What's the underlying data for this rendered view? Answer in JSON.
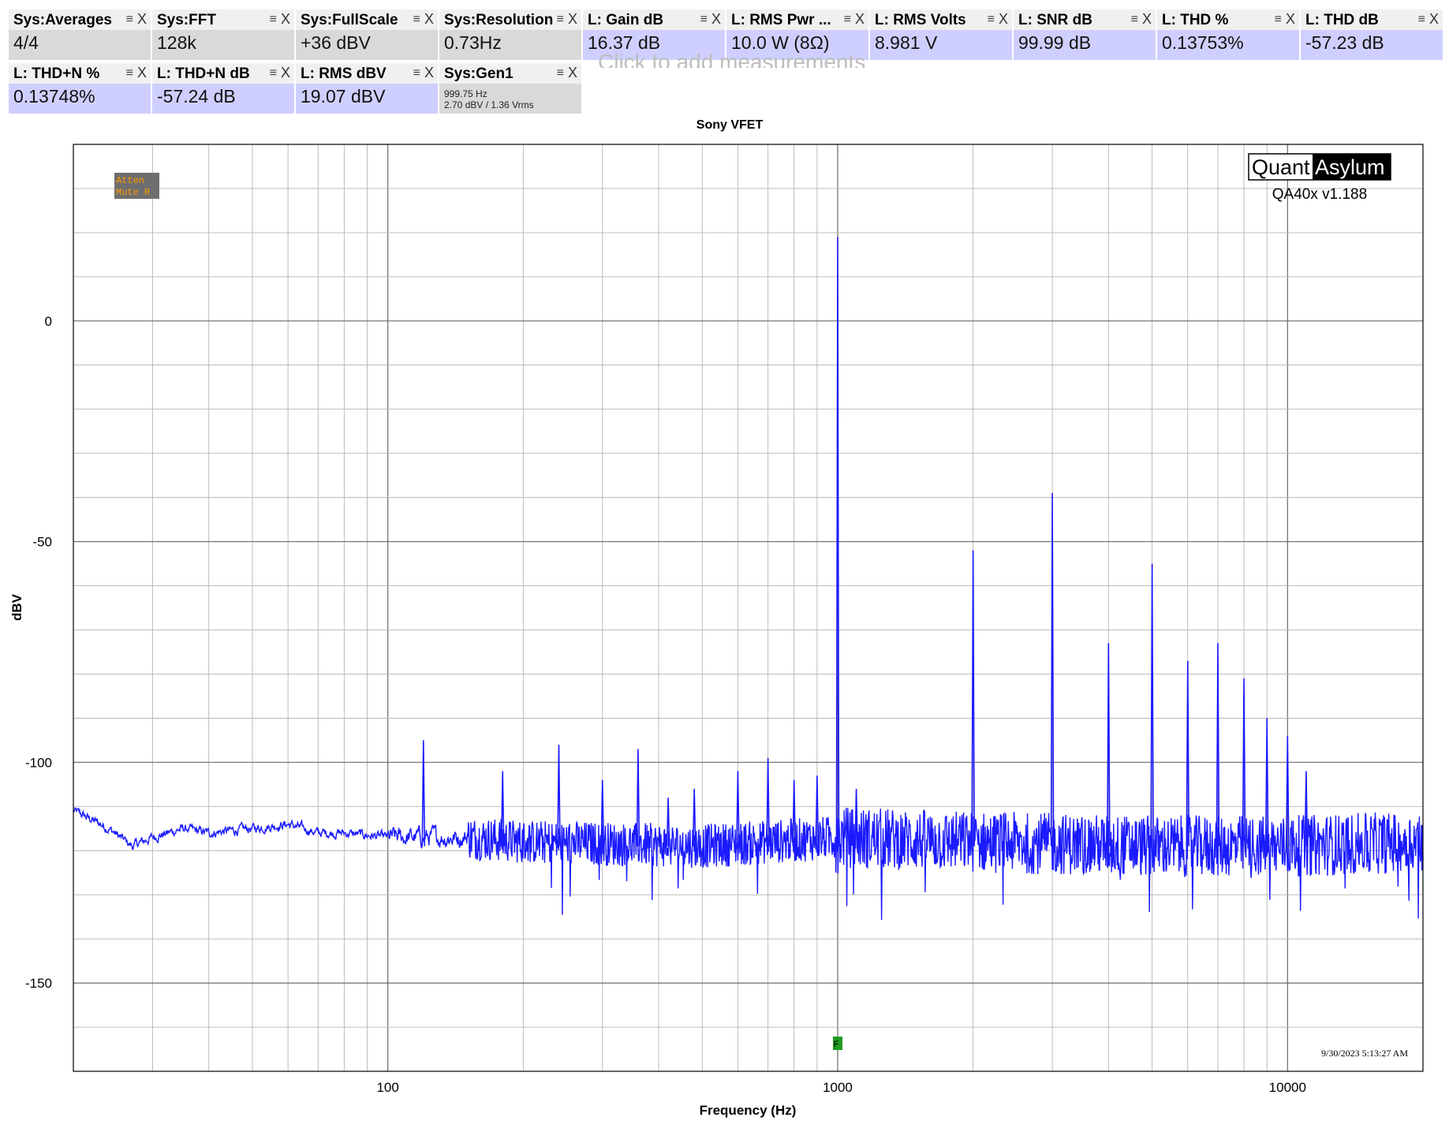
{
  "measurements": [
    {
      "title": "Sys:Averages",
      "value": "4/4",
      "style": "gray"
    },
    {
      "title": "Sys:FFT",
      "value": "128k",
      "style": "gray"
    },
    {
      "title": "Sys:FullScale",
      "value": "+36 dBV",
      "style": "gray"
    },
    {
      "title": "Sys:Resolution",
      "value": "0.73Hz",
      "style": "gray"
    },
    {
      "title": "L: Gain dB",
      "value": "16.37 dB",
      "style": "lav"
    },
    {
      "title": "L: RMS Pwr ...",
      "value": "10.0 W (8Ω)",
      "style": "lav"
    },
    {
      "title": "L: RMS Volts",
      "value": "8.981 V",
      "style": "lav"
    },
    {
      "title": "L: SNR dB",
      "value": "99.99 dB",
      "style": "lav"
    },
    {
      "title": "L: THD %",
      "value": "0.13753%",
      "style": "lav"
    },
    {
      "title": "L: THD dB",
      "value": "-57.23 dB",
      "style": "lav"
    },
    {
      "title": "L: THD+N %",
      "value": "0.13748%",
      "style": "lav"
    },
    {
      "title": "L: THD+N dB",
      "value": "-57.24 dB",
      "style": "lav"
    },
    {
      "title": "L: RMS dBV",
      "value": "19.07 dBV",
      "style": "lav"
    },
    {
      "title": "Sys:Gen1",
      "value": "",
      "style": "gray",
      "sub1": "999.75 Hz",
      "sub2": "2.70 dBV  / 1.36 Vrms"
    }
  ],
  "tile_icons": {
    "menu": "menu-icon",
    "close": "close-icon"
  },
  "menu_glyph": "≡",
  "close_glyph": "X",
  "add_hint": "Click to add measurements",
  "badge": {
    "line1": "Atten",
    "line2": "Mute R"
  },
  "logo": {
    "part1": "Quant",
    "part2": "Asylum",
    "version": "QA40x v1.188"
  },
  "timestamp": "9/30/2023 5:13:27 AM",
  "marker_label": "F",
  "colors": {
    "trace": "#1a1aff",
    "grid": "#b4b4b4",
    "badge_bg": "#6e6e6e",
    "badge_text": "#ff9900",
    "marker": "#1f9a1f"
  },
  "chart_data": {
    "type": "line",
    "title": "Sony VFET",
    "xlabel": "Frequency (Hz)",
    "ylabel": "dBV",
    "x_scale": "log",
    "xlim": [
      20,
      20000
    ],
    "ylim": [
      -170,
      40
    ],
    "x_ticks": [
      100,
      1000,
      10000
    ],
    "x_tick_labels": [
      "100",
      "1000",
      "10000"
    ],
    "y_ticks": [
      0,
      -50,
      -100,
      -150
    ],
    "y_tick_labels": [
      "0",
      "-50",
      "-100",
      "-150"
    ],
    "grid": true,
    "marker_freq": 1000,
    "noise_floor": [
      [
        20,
        -111
      ],
      [
        21,
        -112
      ],
      [
        24,
        -115
      ],
      [
        27,
        -119
      ],
      [
        30,
        -117
      ],
      [
        35,
        -115
      ],
      [
        40,
        -116
      ],
      [
        50,
        -115
      ],
      [
        60,
        -114
      ],
      [
        70,
        -116
      ],
      [
        80,
        -116
      ],
      [
        100,
        -117
      ],
      [
        150,
        -117
      ],
      [
        200,
        -118
      ],
      [
        500,
        -119
      ],
      [
        1000,
        -117
      ],
      [
        2000,
        -118
      ],
      [
        5000,
        -119
      ],
      [
        10000,
        -119
      ],
      [
        20000,
        -118
      ]
    ],
    "peaks": [
      {
        "freq": 120,
        "dbv": -95
      },
      {
        "freq": 180,
        "dbv": -102
      },
      {
        "freq": 240,
        "dbv": -96
      },
      {
        "freq": 300,
        "dbv": -104
      },
      {
        "freq": 360,
        "dbv": -97
      },
      {
        "freq": 420,
        "dbv": -108
      },
      {
        "freq": 480,
        "dbv": -106
      },
      {
        "freq": 600,
        "dbv": -102
      },
      {
        "freq": 700,
        "dbv": -99
      },
      {
        "freq": 800,
        "dbv": -104
      },
      {
        "freq": 900,
        "dbv": -103
      },
      {
        "freq": 1000,
        "dbv": 19
      },
      {
        "freq": 1100,
        "dbv": -106
      },
      {
        "freq": 2000,
        "dbv": -52
      },
      {
        "freq": 3000,
        "dbv": -39
      },
      {
        "freq": 4000,
        "dbv": -73
      },
      {
        "freq": 5000,
        "dbv": -55
      },
      {
        "freq": 6000,
        "dbv": -77
      },
      {
        "freq": 7000,
        "dbv": -73
      },
      {
        "freq": 8000,
        "dbv": -81
      },
      {
        "freq": 9000,
        "dbv": -90
      },
      {
        "freq": 10000,
        "dbv": -94
      },
      {
        "freq": 11000,
        "dbv": -102
      }
    ]
  }
}
